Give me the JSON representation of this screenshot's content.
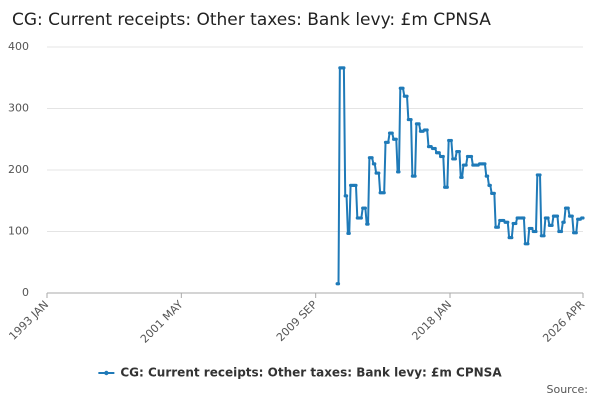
{
  "chart_data": {
    "type": "line",
    "title": "CG: Current receipts: Other taxes: Bank levy: £m CPNSA",
    "source_label": "Source:",
    "xlim": [
      "1993 JAN",
      "2026 APR"
    ],
    "xticks": [
      "1993 JAN",
      "2001 MAY",
      "2009 SEP",
      "2018 JAN",
      "2026 APR"
    ],
    "ylim": [
      0,
      400
    ],
    "yticks": [
      0,
      100,
      200,
      300,
      400
    ],
    "grid": true,
    "legend": "bottom",
    "x": [
      "2011 JAN",
      "2011 FEB",
      "2011 MAR",
      "2011 APR",
      "2011 MAY",
      "2011 JUN",
      "2011 JUL",
      "2011 AUG",
      "2011 SEP",
      "2011 OCT",
      "2011 NOV",
      "2011 DEC",
      "2012 JAN",
      "2012 FEB",
      "2012 MAR",
      "2012 APR",
      "2012 MAY",
      "2012 JUN",
      "2012 JUL",
      "2012 AUG",
      "2012 SEP",
      "2012 OCT",
      "2012 NOV",
      "2012 DEC",
      "2013 JAN",
      "2013 FEB",
      "2013 MAR",
      "2013 APR",
      "2013 MAY",
      "2013 JUN",
      "2013 JUL",
      "2013 AUG",
      "2013 SEP",
      "2013 OCT",
      "2013 NOV",
      "2013 DEC",
      "2014 JAN",
      "2014 FEB",
      "2014 MAR",
      "2014 APR",
      "2014 MAY",
      "2014 JUN",
      "2014 JUL",
      "2014 AUG",
      "2014 SEP",
      "2014 OCT",
      "2014 NOV",
      "2014 DEC",
      "2015 JAN",
      "2015 FEB",
      "2015 MAR",
      "2015 APR",
      "2015 MAY",
      "2015 JUN",
      "2015 JUL",
      "2015 AUG",
      "2015 SEP",
      "2015 OCT",
      "2015 NOV",
      "2015 DEC",
      "2016 JAN",
      "2016 FEB",
      "2016 MAR",
      "2016 APR",
      "2016 MAY",
      "2016 JUN",
      "2016 JUL",
      "2016 AUG",
      "2016 SEP",
      "2016 OCT",
      "2016 NOV",
      "2016 DEC",
      "2017 JAN",
      "2017 FEB",
      "2017 MAR",
      "2017 APR",
      "2017 MAY",
      "2017 JUN",
      "2017 JUL",
      "2017 AUG",
      "2017 SEP",
      "2017 OCT",
      "2017 NOV",
      "2017 DEC",
      "2018 JAN",
      "2018 FEB",
      "2018 MAR",
      "2018 APR",
      "2018 MAY",
      "2018 JUN",
      "2018 JUL",
      "2018 AUG",
      "2018 SEP",
      "2018 OCT",
      "2018 NOV",
      "2018 DEC",
      "2019 JAN",
      "2019 FEB",
      "2019 MAR",
      "2019 APR",
      "2019 MAY",
      "2019 JUN",
      "2019 JUL",
      "2019 AUG",
      "2019 SEP",
      "2019 OCT",
      "2019 NOV",
      "2019 DEC",
      "2020 JAN",
      "2020 FEB",
      "2020 MAR",
      "2020 APR",
      "2020 MAY",
      "2020 JUN",
      "2020 JUL",
      "2020 AUG",
      "2020 SEP",
      "2020 OCT",
      "2020 NOV",
      "2020 DEC",
      "2021 JAN",
      "2021 FEB",
      "2021 MAR",
      "2021 APR",
      "2021 MAY",
      "2021 JUN",
      "2021 JUL",
      "2021 AUG",
      "2021 SEP",
      "2021 OCT",
      "2021 NOV",
      "2021 DEC",
      "2022 JAN",
      "2022 FEB",
      "2022 MAR",
      "2022 APR",
      "2022 MAY",
      "2022 JUN",
      "2022 JUL",
      "2022 AUG",
      "2022 SEP",
      "2022 OCT",
      "2022 NOV",
      "2022 DEC",
      "2023 JAN",
      "2023 FEB",
      "2023 MAR",
      "2023 APR",
      "2023 MAY",
      "2023 JUN",
      "2023 JUL",
      "2023 AUG",
      "2023 SEP",
      "2023 OCT",
      "2023 NOV",
      "2023 DEC",
      "2024 JAN",
      "2024 FEB",
      "2024 MAR",
      "2024 APR",
      "2024 MAY",
      "2024 JUN",
      "2024 JUL",
      "2024 AUG",
      "2024 SEP",
      "2024 OCT",
      "2024 NOV",
      "2024 DEC",
      "2025 JAN",
      "2025 FEB",
      "2025 MAR",
      "2025 APR",
      "2025 MAY",
      "2025 JUN",
      "2025 JUL",
      "2025 AUG",
      "2025 SEP",
      "2025 OCT",
      "2025 NOV",
      "2025 DEC",
      "2026 JAN",
      "2026 FEB",
      "2026 MAR",
      "2026 APR"
    ],
    "series": [
      {
        "name": "CG: Current receipts: Other taxes: Bank levy: £m CPNSA",
        "color": "#1f7ab8",
        "values": [
          15,
          15,
          366,
          366,
          366,
          366,
          158,
          158,
          97,
          97,
          175,
          175,
          175,
          175,
          175,
          122,
          122,
          122,
          122,
          138,
          138,
          138,
          112,
          112,
          220,
          220,
          220,
          210,
          210,
          195,
          195,
          195,
          163,
          163,
          163,
          163,
          245,
          245,
          245,
          260,
          260,
          260,
          250,
          250,
          250,
          197,
          197,
          333,
          333,
          333,
          320,
          320,
          320,
          282,
          282,
          282,
          190,
          190,
          190,
          275,
          275,
          275,
          263,
          263,
          263,
          265,
          265,
          265,
          238,
          238,
          238,
          235,
          235,
          235,
          228,
          228,
          228,
          222,
          222,
          222,
          172,
          172,
          172,
          248,
          248,
          248,
          218,
          218,
          218,
          230,
          230,
          230,
          188,
          188,
          208,
          208,
          208,
          222,
          222,
          222,
          222,
          208,
          208,
          208,
          208,
          208,
          210,
          210,
          210,
          210,
          210,
          190,
          190,
          175,
          175,
          162,
          162,
          162,
          107,
          107,
          107,
          118,
          118,
          118,
          118,
          115,
          115,
          115,
          90,
          90,
          90,
          113,
          113,
          113,
          122,
          122,
          122,
          122,
          122,
          122,
          80,
          80,
          80,
          105,
          105,
          105,
          100,
          100,
          100,
          192,
          192,
          192,
          93,
          93,
          93,
          122,
          122,
          122,
          110,
          110,
          110,
          125,
          125,
          125,
          125,
          100,
          100,
          100,
          115,
          115,
          138,
          138,
          138,
          125,
          125,
          125,
          98,
          98,
          98,
          120,
          120,
          120,
          122,
          122
        ]
      }
    ]
  }
}
